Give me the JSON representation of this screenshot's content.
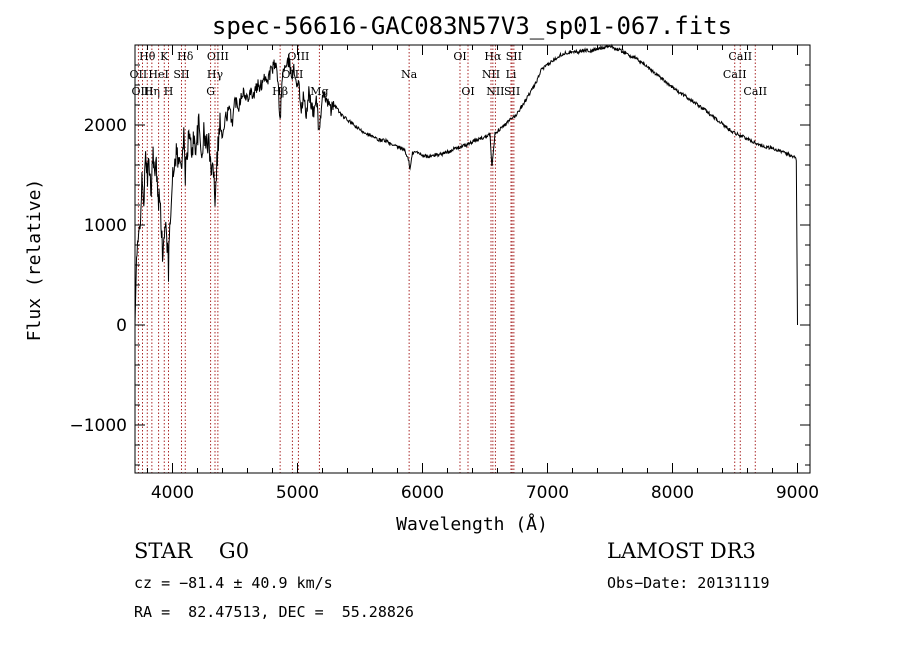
{
  "chart_data": {
    "type": "line",
    "title": "spec-56616-GAC083N57V3_sp01-067.fits",
    "xlabel": "Wavelength (Å)",
    "ylabel": "Flux (relative)",
    "xlim": [
      3700,
      9100
    ],
    "ylim": [
      -1480,
      2800
    ],
    "xticks": [
      4000,
      5000,
      6000,
      7000,
      8000,
      9000
    ],
    "xtick_labels": [
      "4000",
      "5000",
      "6000",
      "7000",
      "8000",
      "9000"
    ],
    "yticks": [
      -1000,
      0,
      1000,
      2000
    ],
    "ytick_labels": [
      "−1000",
      "0",
      "1000",
      "2000"
    ],
    "x_minor_step": 200,
    "y_minor_step": 200,
    "grid": false,
    "series": [
      {
        "name": "spectrum",
        "points": [
          [
            3700,
            0
          ],
          [
            3712,
            650
          ],
          [
            3725,
            780
          ],
          [
            3740,
            1050
          ],
          [
            3755,
            1400
          ],
          [
            3770,
            1250
          ],
          [
            3785,
            1650
          ],
          [
            3800,
            1500
          ],
          [
            3815,
            1600
          ],
          [
            3830,
            1350
          ],
          [
            3845,
            1780
          ],
          [
            3860,
            1450
          ],
          [
            3870,
            1600
          ],
          [
            3885,
            1200
          ],
          [
            3900,
            1350
          ],
          [
            3920,
            700
          ],
          [
            3935,
            850
          ],
          [
            3950,
            1050
          ],
          [
            3968,
            500
          ],
          [
            3975,
            950
          ],
          [
            3990,
            1300
          ],
          [
            4010,
            1550
          ],
          [
            4030,
            1750
          ],
          [
            4050,
            1600
          ],
          [
            4070,
            1650
          ],
          [
            4090,
            1850
          ],
          [
            4102,
            1500
          ],
          [
            4115,
            1700
          ],
          [
            4130,
            1900
          ],
          [
            4150,
            1750
          ],
          [
            4170,
            1850
          ],
          [
            4190,
            1800
          ],
          [
            4210,
            2000
          ],
          [
            4230,
            1700
          ],
          [
            4250,
            1900
          ],
          [
            4270,
            1800
          ],
          [
            4290,
            1850
          ],
          [
            4305,
            1550
          ],
          [
            4320,
            1700
          ],
          [
            4340,
            1300
          ],
          [
            4355,
            1650
          ],
          [
            4380,
            2050
          ],
          [
            4400,
            1850
          ],
          [
            4420,
            2050
          ],
          [
            4450,
            2150
          ],
          [
            4480,
            2050
          ],
          [
            4500,
            2250
          ],
          [
            4530,
            2200
          ],
          [
            4560,
            2350
          ],
          [
            4590,
            2250
          ],
          [
            4620,
            2350
          ],
          [
            4650,
            2300
          ],
          [
            4680,
            2400
          ],
          [
            4700,
            2350
          ],
          [
            4730,
            2500
          ],
          [
            4760,
            2450
          ],
          [
            4790,
            2550
          ],
          [
            4820,
            2600
          ],
          [
            4840,
            2500
          ],
          [
            4861,
            2050
          ],
          [
            4875,
            2400
          ],
          [
            4890,
            2600
          ],
          [
            4910,
            2550
          ],
          [
            4930,
            2650
          ],
          [
            4950,
            2500
          ],
          [
            4970,
            2550
          ],
          [
            4990,
            2450
          ],
          [
            5010,
            2400
          ],
          [
            5030,
            2150
          ],
          [
            5050,
            2300
          ],
          [
            5070,
            2050
          ],
          [
            5090,
            2350
          ],
          [
            5110,
            2200
          ],
          [
            5130,
            2100
          ],
          [
            5150,
            2300
          ],
          [
            5170,
            1950
          ],
          [
            5183,
            2050
          ],
          [
            5200,
            2250
          ],
          [
            5230,
            2300
          ],
          [
            5260,
            2150
          ],
          [
            5300,
            2200
          ],
          [
            5350,
            2100
          ],
          [
            5400,
            2050
          ],
          [
            5450,
            2000
          ],
          [
            5500,
            1950
          ],
          [
            5550,
            1920
          ],
          [
            5600,
            1880
          ],
          [
            5650,
            1850
          ],
          [
            5700,
            1850
          ],
          [
            5750,
            1800
          ],
          [
            5800,
            1780
          ],
          [
            5850,
            1760
          ],
          [
            5890,
            1650
          ],
          [
            5900,
            1550
          ],
          [
            5920,
            1720
          ],
          [
            5950,
            1730
          ],
          [
            6000,
            1700
          ],
          [
            6050,
            1680
          ],
          [
            6100,
            1700
          ],
          [
            6150,
            1710
          ],
          [
            6200,
            1730
          ],
          [
            6250,
            1760
          ],
          [
            6300,
            1780
          ],
          [
            6350,
            1800
          ],
          [
            6400,
            1830
          ],
          [
            6450,
            1860
          ],
          [
            6500,
            1880
          ],
          [
            6540,
            1920
          ],
          [
            6555,
            1580
          ],
          [
            6565,
            1700
          ],
          [
            6580,
            1920
          ],
          [
            6620,
            1960
          ],
          [
            6660,
            2000
          ],
          [
            6700,
            2050
          ],
          [
            6750,
            2100
          ],
          [
            6800,
            2200
          ],
          [
            6850,
            2300
          ],
          [
            6900,
            2400
          ],
          [
            6950,
            2550
          ],
          [
            7000,
            2600
          ],
          [
            7050,
            2650
          ],
          [
            7100,
            2700
          ],
          [
            7150,
            2720
          ],
          [
            7200,
            2740
          ],
          [
            7250,
            2730
          ],
          [
            7300,
            2750
          ],
          [
            7350,
            2740
          ],
          [
            7400,
            2760
          ],
          [
            7450,
            2780
          ],
          [
            7500,
            2790
          ],
          [
            7550,
            2760
          ],
          [
            7600,
            2740
          ],
          [
            7650,
            2700
          ],
          [
            7700,
            2670
          ],
          [
            7750,
            2630
          ],
          [
            7800,
            2580
          ],
          [
            7850,
            2530
          ],
          [
            7900,
            2480
          ],
          [
            7950,
            2430
          ],
          [
            8000,
            2380
          ],
          [
            8050,
            2330
          ],
          [
            8100,
            2290
          ],
          [
            8150,
            2250
          ],
          [
            8200,
            2200
          ],
          [
            8250,
            2160
          ],
          [
            8300,
            2110
          ],
          [
            8350,
            2060
          ],
          [
            8400,
            2010
          ],
          [
            8450,
            1960
          ],
          [
            8500,
            1920
          ],
          [
            8550,
            1890
          ],
          [
            8600,
            1860
          ],
          [
            8650,
            1830
          ],
          [
            8700,
            1800
          ],
          [
            8750,
            1780
          ],
          [
            8800,
            1770
          ],
          [
            8850,
            1740
          ],
          [
            8900,
            1720
          ],
          [
            8950,
            1700
          ],
          [
            8990,
            1660
          ],
          [
            9000,
            0
          ]
        ]
      }
    ],
    "lines": [
      {
        "label": "Hθ",
        "x": 3798,
        "row": 0
      },
      {
        "label": "OII",
        "x": 3727,
        "row": 1
      },
      {
        "label": "OIII",
        "x": 3760,
        "row": 2
      },
      {
        "label": "Hη",
        "x": 3835,
        "row": 2
      },
      {
        "label": "K",
        "x": 3934,
        "row": 0
      },
      {
        "label": "HeI",
        "x": 3889,
        "row": 1
      },
      {
        "label": "H",
        "x": 3968,
        "row": 2
      },
      {
        "label": "Hδ",
        "x": 4102,
        "row": 0
      },
      {
        "label": "SII",
        "x": 4072,
        "row": 1
      },
      {
        "label": "OIII",
        "x": 4363,
        "row": 0
      },
      {
        "label": "Hγ",
        "x": 4340,
        "row": 1
      },
      {
        "label": "G",
        "x": 4305,
        "row": 2
      },
      {
        "label": "OIII",
        "x": 5007,
        "row": 0
      },
      {
        "label": "OIII",
        "x": 4959,
        "row": 1
      },
      {
        "label": "Hβ",
        "x": 4861,
        "row": 2
      },
      {
        "label": "Mg",
        "x": 5175,
        "row": 2
      },
      {
        "label": "Na",
        "x": 5893,
        "row": 1
      },
      {
        "label": "OI",
        "x": 6300,
        "row": 0
      },
      {
        "label": "OI",
        "x": 6364,
        "row": 2
      },
      {
        "label": "Hα",
        "x": 6563,
        "row": 0
      },
      {
        "label": "NII",
        "x": 6548,
        "row": 1
      },
      {
        "label": "NII",
        "x": 6583,
        "row": 2
      },
      {
        "label": "SII",
        "x": 6731,
        "row": 0
      },
      {
        "label": "Li",
        "x": 6708,
        "row": 1
      },
      {
        "label": "SII",
        "x": 6717,
        "row": 2
      },
      {
        "label": "CaII",
        "x": 8542,
        "row": 0
      },
      {
        "label": "CaII",
        "x": 8498,
        "row": 1
      },
      {
        "label": "CaII",
        "x": 8662,
        "row": 2
      }
    ]
  },
  "info": {
    "class_label": "STAR    G0",
    "redshift": "cz = −81.4 ± 40.9 km/s",
    "coords": "RA =  82.47513, DEC =  55.28826",
    "survey": "LAMOST DR3",
    "obs_date": "Obs−Date: 20131119"
  },
  "colors": {
    "line_marker": "#a01010",
    "spectrum": "#000000",
    "axis": "#000000"
  }
}
